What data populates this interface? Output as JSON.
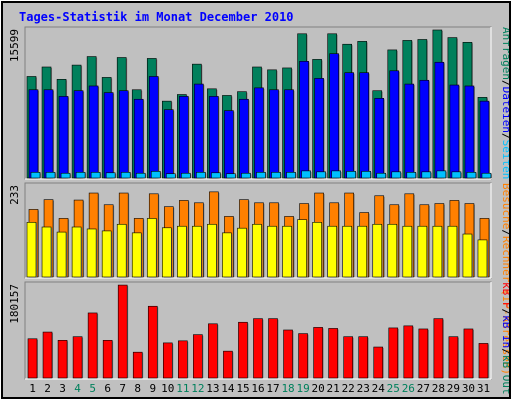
{
  "title": "Tages-Statistik im Monat December 2010",
  "colors": {
    "background": "#c0c0c0",
    "title": "#0000ff",
    "anfragen": "#00805c",
    "dateien": "#0000ff",
    "seiten": "#00c0ff",
    "rechner": "#ffff00",
    "besuche": "#ff8000",
    "kb_in": "#ff0000",
    "weekend_label": "#00805c"
  },
  "chart_data": [
    {
      "type": "bar",
      "panel": "hits-files-pages",
      "ymax_label": "15599",
      "ymax": 15599,
      "series_label_parts": [
        {
          "text": "Anfragen",
          "color": "#00805c"
        },
        {
          "text": "/",
          "color": "#000000"
        },
        {
          "text": "Dateien",
          "color": "#0000ff"
        },
        {
          "text": "/",
          "color": "#000000"
        },
        {
          "text": "Seiten",
          "color": "#00c0ff"
        }
      ],
      "series": [
        {
          "name": "Anfragen",
          "color": "#00805c",
          "values": [
            10700,
            11700,
            10400,
            11900,
            12800,
            10600,
            12700,
            9300,
            12600,
            8100,
            8800,
            12000,
            9400,
            8700,
            9100,
            11700,
            11400,
            11600,
            15200,
            12500,
            15200,
            14100,
            14400,
            9200,
            13500,
            14500,
            14600,
            15600,
            14800,
            14300,
            8500
          ]
        },
        {
          "name": "Dateien",
          "color": "#0000ff",
          "values": [
            9300,
            9300,
            8600,
            9200,
            9700,
            9000,
            9200,
            8300,
            10700,
            7200,
            8600,
            9900,
            8600,
            7100,
            8300,
            9500,
            9300,
            9300,
            12300,
            10500,
            13100,
            11100,
            11100,
            8400,
            11300,
            9900,
            10300,
            12200,
            9800,
            9700,
            8100
          ]
        },
        {
          "name": "Seiten",
          "color": "#00c0ff",
          "values": [
            600,
            600,
            500,
            600,
            600,
            550,
            600,
            500,
            700,
            450,
            500,
            600,
            550,
            450,
            500,
            600,
            600,
            600,
            750,
            650,
            750,
            700,
            700,
            500,
            650,
            600,
            650,
            750,
            650,
            600,
            500
          ]
        }
      ]
    },
    {
      "type": "bar",
      "panel": "visits-sites",
      "ymax_label": "233",
      "ymax": 233,
      "series_label_parts": [
        {
          "text": "Besuche",
          "color": "#ff8000"
        },
        {
          "text": "/",
          "color": "#000000"
        },
        {
          "text": "Rechner (IP-Adressen)",
          "color": "#ff8000"
        }
      ],
      "series": [
        {
          "name": "Besuche",
          "color": "#ff8000",
          "values": [
            173,
            198,
            150,
            197,
            215,
            185,
            215,
            150,
            213,
            180,
            196,
            190,
            218,
            155,
            198,
            190,
            190,
            155,
            188,
            215,
            190,
            215,
            165,
            208,
            185,
            213,
            185,
            188,
            196,
            188,
            150
          ]
        },
        {
          "name": "Rechner (IP-Adressen)",
          "color": "#ffff00",
          "values": [
            140,
            128,
            115,
            128,
            123,
            118,
            135,
            113,
            150,
            126,
            130,
            130,
            135,
            113,
            125,
            135,
            130,
            130,
            147,
            140,
            130,
            130,
            130,
            135,
            135,
            130,
            130,
            130,
            130,
            110,
            95
          ]
        }
      ]
    },
    {
      "type": "bar",
      "panel": "kbytes",
      "ymax_label": "180157",
      "ymax": 180157,
      "series_label_parts": [
        {
          "text": "kB F",
          "color": "#ff0000"
        },
        {
          "text": "/",
          "color": "#000000"
        },
        {
          "text": "kB In",
          "color": "#0000ff"
        },
        {
          "text": "/",
          "color": "#000000"
        },
        {
          "text": "kB Out",
          "color": "#00805c"
        }
      ],
      "series": [
        {
          "name": "kB F",
          "color": "#ff0000",
          "values": [
            76000,
            89000,
            73000,
            80000,
            126000,
            73000,
            180000,
            50000,
            139000,
            68000,
            72000,
            84000,
            105000,
            52000,
            108000,
            115000,
            115000,
            93000,
            86000,
            98000,
            96000,
            80000,
            80000,
            60000,
            97000,
            101000,
            95000,
            115000,
            80000,
            95000,
            67000
          ]
        }
      ]
    }
  ],
  "x_axis": {
    "days": [
      "1",
      "2",
      "3",
      "4",
      "5",
      "6",
      "7",
      "8",
      "9",
      "10",
      "11",
      "12",
      "13",
      "14",
      "15",
      "16",
      "17",
      "18",
      "19",
      "20",
      "21",
      "22",
      "23",
      "24",
      "25",
      "26",
      "27",
      "28",
      "29",
      "30",
      "31"
    ],
    "weekend_days": [
      "4",
      "5",
      "11",
      "12",
      "18",
      "19",
      "25",
      "26"
    ]
  }
}
